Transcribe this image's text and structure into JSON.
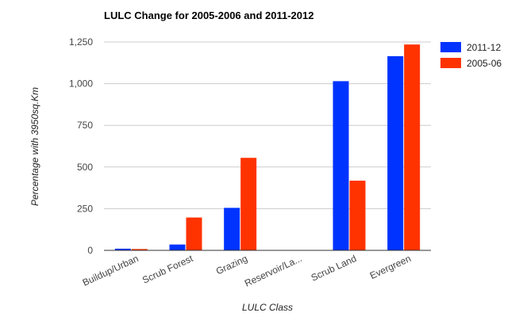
{
  "chart_data": {
    "type": "bar",
    "title": "LULC Change for 2005-2006 and 2011-2012",
    "xlabel": "LULC Class",
    "ylabel": "Percentage with 3950sq.Km",
    "categories": [
      "Buildup/Urban",
      "Scrub Forest",
      "Grazing",
      "Reservoir/La...",
      "Scrub Land",
      "Evergreen"
    ],
    "series": [
      {
        "name": "2011-12",
        "color": "#0033ff",
        "values": [
          10,
          35,
          255,
          2,
          1015,
          1165
        ]
      },
      {
        "name": "2005-06",
        "color": "#ff3300",
        "values": [
          8,
          197,
          555,
          1,
          418,
          1235
        ]
      }
    ],
    "ylim": [
      0,
      1250
    ],
    "yticks": [
      0,
      250,
      500,
      750,
      1000,
      1250
    ],
    "ytick_labels": [
      "0",
      "250",
      "500",
      "750",
      "1,000",
      "1,250"
    ],
    "grid": true,
    "legend_position": "top-right"
  }
}
